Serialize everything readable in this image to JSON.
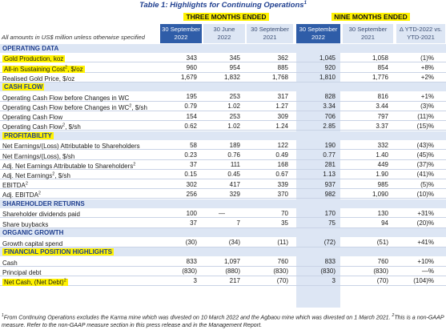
{
  "title": "Table 1: Highlights for Continuing Operations",
  "title_sup": "1",
  "groups": {
    "three_months": "THREE MONTHS ENDED",
    "nine_months": "NINE MONTHS ENDED"
  },
  "units_note": "All amounts in US$ million unless otherwise specified",
  "columns": [
    {
      "line1": "30 September",
      "line2": "2022"
    },
    {
      "line1": "30 June",
      "line2": "2022"
    },
    {
      "line1": "30 September",
      "line2": "2021"
    },
    {
      "line1": "30 September",
      "line2": "2022"
    },
    {
      "line1": "30 September",
      "line2": "2021"
    },
    {
      "line1": "Δ YTD-2022 vs.",
      "line2": "YTD-2021"
    }
  ],
  "sections": [
    {
      "title": "OPERATING DATA",
      "highlight": false,
      "rows": [
        {
          "label": "Gold Production, koz",
          "sup": "",
          "label_suffix": "",
          "highlight": true,
          "values": [
            "343",
            "345",
            "362",
            "1,045",
            "1,058",
            "(1)%"
          ]
        },
        {
          "label": "All-in Sustaining Cost",
          "sup": "2",
          "label_suffix": ", $/oz",
          "highlight": true,
          "values": [
            "960",
            "954",
            "885",
            "920",
            "854",
            "+8%"
          ]
        },
        {
          "label": "Realised Gold Price, $/oz",
          "sup": "",
          "label_suffix": "",
          "highlight": false,
          "values": [
            "1,679",
            "1,832",
            "1,768",
            "1,810",
            "1,776",
            "+2%"
          ]
        }
      ]
    },
    {
      "title": "CASH FLOW",
      "highlight": true,
      "rows": [
        {
          "label": "Operating Cash Flow before Changes in WC",
          "sup": "",
          "label_suffix": "",
          "highlight": false,
          "values": [
            "195",
            "253",
            "317",
            "828",
            "816",
            "+1%"
          ]
        },
        {
          "label": "Operating Cash Flow before Changes in WC",
          "sup": "2",
          "label_suffix": ", $/sh",
          "highlight": false,
          "values": [
            "0.79",
            "1.02",
            "1.27",
            "3.34",
            "3.44",
            "(3)%"
          ]
        },
        {
          "label": "Operating Cash Flow",
          "sup": "",
          "label_suffix": "",
          "highlight": false,
          "values": [
            "154",
            "253",
            "309",
            "706",
            "797",
            "(11)%"
          ]
        },
        {
          "label": "Operating Cash Flow",
          "sup": "2",
          "label_suffix": ", $/sh",
          "highlight": false,
          "values": [
            "0.62",
            "1.02",
            "1.24",
            "2.85",
            "3.37",
            "(15)%"
          ]
        }
      ]
    },
    {
      "title": "PROFITABILITY",
      "highlight": true,
      "rows": [
        {
          "label": "Net Earnings/(Loss) Attributable to Shareholders",
          "sup": "",
          "label_suffix": "",
          "highlight": false,
          "values": [
            "58",
            "189",
            "122",
            "190",
            "332",
            "(43)%"
          ]
        },
        {
          "label": "Net Earnings/(Loss), $/sh",
          "sup": "",
          "label_suffix": "",
          "highlight": false,
          "values": [
            "0.23",
            "0.76",
            "0.49",
            "0.77",
            "1.40",
            "(45)%"
          ]
        },
        {
          "label": "Adj. Net Earnings Attributable to Shareholders",
          "sup": "2",
          "label_suffix": "",
          "highlight": false,
          "values": [
            "37",
            "111",
            "168",
            "281",
            "449",
            "(37)%"
          ]
        },
        {
          "label": "Adj. Net Earnings",
          "sup": "2",
          "label_suffix": ", $/sh",
          "highlight": false,
          "values": [
            "0.15",
            "0.45",
            "0.67",
            "1.13",
            "1.90",
            "(41)%"
          ]
        },
        {
          "label": "EBITDA",
          "sup": "2",
          "label_suffix": "",
          "highlight": false,
          "values": [
            "302",
            "417",
            "339",
            "937",
            "985",
            "(5)%"
          ]
        },
        {
          "label": "Adj. EBITDA",
          "sup": "2",
          "label_suffix": "",
          "highlight": false,
          "values": [
            "256",
            "329",
            "370",
            "982",
            "1,090",
            "(10)%"
          ]
        }
      ]
    },
    {
      "title": "SHAREHOLDER RETURNS",
      "highlight": false,
      "rows": [
        {
          "label": "Shareholder dividends paid",
          "sup": "",
          "label_suffix": "",
          "highlight": false,
          "values": [
            "100",
            "—",
            "70",
            "170",
            "130",
            "+31%"
          ]
        },
        {
          "label": "Share buybacks",
          "sup": "",
          "label_suffix": "",
          "highlight": false,
          "values": [
            "37",
            "7",
            "35",
            "75",
            "94",
            "(20)%"
          ]
        }
      ]
    },
    {
      "title": "ORGANIC GROWTH",
      "highlight": false,
      "rows": [
        {
          "label": "Growth capital spend",
          "sup": "",
          "label_suffix": "",
          "highlight": false,
          "values": [
            "(30)",
            "(34)",
            "(11)",
            "(72)",
            "(51)",
            "+41%"
          ]
        }
      ]
    },
    {
      "title": "FINANCIAL POSITION HIGHLIGHTS",
      "highlight": true,
      "rows": [
        {
          "label": "Cash",
          "sup": "",
          "label_suffix": "",
          "highlight": false,
          "values": [
            "833",
            "1,097",
            "760",
            "833",
            "760",
            "+10%"
          ]
        },
        {
          "label": "Principal debt",
          "sup": "",
          "label_suffix": "",
          "highlight": false,
          "values": [
            "(830)",
            "(880)",
            "(830)",
            "(830)",
            "(830)",
            "—%"
          ]
        },
        {
          "label": "Net Cash, (Net Debt)",
          "sup": "2",
          "label_suffix": "",
          "highlight": true,
          "values": [
            "3",
            "217",
            "(70)",
            "3",
            "(70)",
            "(104)%"
          ]
        }
      ]
    }
  ],
  "footnote": {
    "s1": "1",
    "t1": "From Continuing Operations excludes the Karma mine which was divested on 10 March 2022 and the Agbaou mine which was divested on 1 March 2021.",
    "s2": "2",
    "t2": "This is a non-GAAP measure. Refer to the non-GAAP measure section in this press release and in the Management Report."
  }
}
